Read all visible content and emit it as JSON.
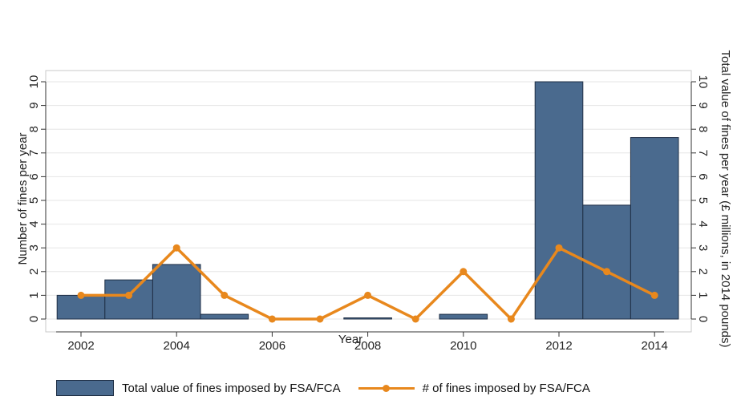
{
  "chart_data": {
    "type": "bar",
    "xlabel": "Year",
    "ylabel_left": "Number of fines per year",
    "ylabel_right": "Total value of fines per year  (£ millions, in 2014 pounds)",
    "x": [
      2002,
      2003,
      2004,
      2005,
      2006,
      2007,
      2008,
      2009,
      2010,
      2011,
      2012,
      2013,
      2014
    ],
    "x_ticks": [
      2002,
      2004,
      2006,
      2008,
      2010,
      2012,
      2014
    ],
    "y_ticks": [
      0,
      1,
      2,
      3,
      4,
      5,
      6,
      7,
      8,
      9,
      10
    ],
    "ylim": [
      0,
      10
    ],
    "series": [
      {
        "name": "Total value of fines imposed by FSA/FCA",
        "type": "bar",
        "axis": "right",
        "color": "#4a6a8e",
        "values": [
          1.0,
          1.65,
          2.3,
          0.2,
          0,
          0,
          0.05,
          0,
          0.2,
          0,
          10.0,
          4.8,
          7.65
        ]
      },
      {
        "name": "# of fines imposed by FSA/FCA",
        "type": "line",
        "axis": "left",
        "color": "#e8881d",
        "values": [
          1,
          1,
          3,
          1,
          0,
          0,
          1,
          0,
          2,
          0,
          3,
          2,
          1
        ]
      }
    ],
    "grid": "horizontal",
    "legend_position": "bottom"
  }
}
